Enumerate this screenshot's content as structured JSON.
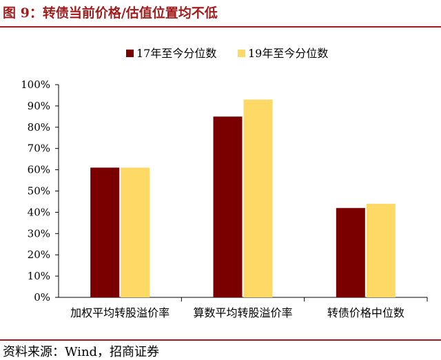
{
  "figure": {
    "title": "图 9：转债当前价格/估值位置均不低",
    "source": "资料来源：Wind，招商证券"
  },
  "colors": {
    "brand": "#a11d1d",
    "series_0": "#7a0000",
    "series_1": "#ffd966",
    "axis": "#000000"
  },
  "chart_data": {
    "type": "bar",
    "categories": [
      "加权平均转股溢价率",
      "算数平均转股溢价率",
      "转债价格中位数"
    ],
    "series": [
      {
        "name": "17年至今分位数",
        "values": [
          0.61,
          0.85,
          0.42
        ]
      },
      {
        "name": "19年至今分位数",
        "values": [
          0.61,
          0.93,
          0.44
        ]
      }
    ],
    "ylim": [
      0,
      1
    ],
    "yticks": [
      "0%",
      "10%",
      "20%",
      "30%",
      "40%",
      "50%",
      "60%",
      "70%",
      "80%",
      "90%",
      "100%"
    ],
    "grid": false,
    "legend": "top-center"
  }
}
